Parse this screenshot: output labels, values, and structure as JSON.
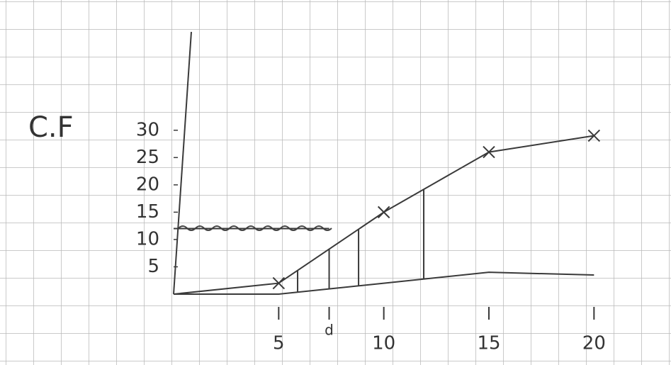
{
  "chart_data": {
    "type": "line",
    "ylabel": "C.F",
    "x": [
      0,
      5,
      10,
      15,
      20
    ],
    "series": [
      {
        "color": "#3a3a3a",
        "values": [
          0,
          2,
          15,
          26,
          29
        ],
        "marker": "x"
      },
      {
        "color": "#3a3a3a",
        "values": [
          0,
          0,
          2,
          4,
          3.5
        ]
      }
    ],
    "xlim": [
      0,
      21
    ],
    "xticks": [
      5,
      10,
      15,
      20
    ],
    "ylim": [
      0,
      48
    ],
    "yticks": [
      5,
      10,
      15,
      20,
      25,
      30
    ],
    "annotation": {
      "label": "d",
      "x": 7.4
    },
    "hline": {
      "y": 12,
      "x_end": 7.4
    },
    "vlines": [
      5.9,
      7.4,
      8.8,
      11.9
    ],
    "grid": true
  }
}
